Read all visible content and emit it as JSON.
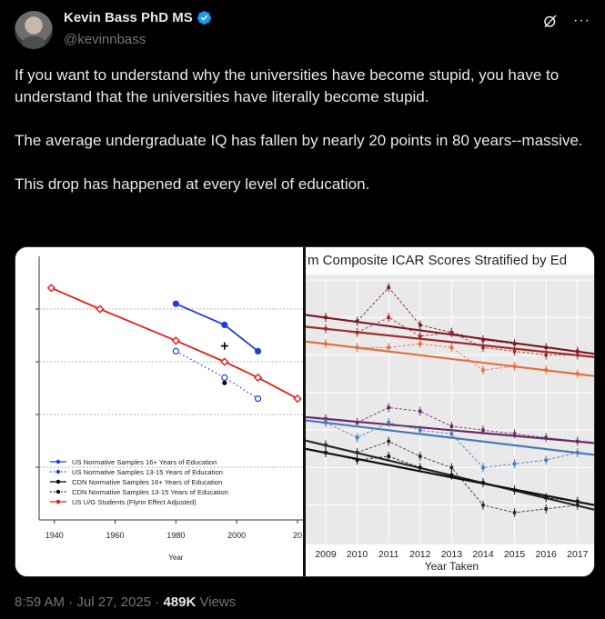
{
  "user": {
    "name": "Kevin Bass PhD MS",
    "handle": "@kevinnbass"
  },
  "tweet": {
    "paragraphs": [
      "If you want to understand why the universities have become stupid, you have to understand that the universities have literally become stupid.",
      "The average undergraduate IQ has fallen by nearly 20 points in 80 years--massive.",
      "This drop has happened at every level of education."
    ]
  },
  "footer": {
    "time": "8:59 AM",
    "separator": "·",
    "date": "Jul 27, 2025",
    "views_count": "489K",
    "views_label": "Views"
  },
  "icons": {
    "verified": "verified-badge-icon",
    "grok": "grok-icon",
    "more": "more-options-icon"
  },
  "colors": {
    "accent": "#1d9bf0",
    "background": "#000000",
    "secondary": "#71767b"
  },
  "chart_data": [
    {
      "type": "line",
      "title": "",
      "xlabel": "Year",
      "ylabel": "",
      "xlim": [
        1935,
        2020
      ],
      "x_ticks": [
        "1940",
        "1960",
        "1980",
        "2000",
        "20"
      ],
      "grid": "horizontal dotted",
      "legend_position": "bottom-left",
      "series": [
        {
          "name": "US Normative Samples 16+ Years of Education",
          "color": "#1f3fd6",
          "style": "solid",
          "x": [
            1980,
            1996,
            2007
          ],
          "y": [
            101,
            97,
            92
          ]
        },
        {
          "name": "US Normative Samples 13-15 Years of Education",
          "color": "#1f3fd6",
          "style": "dotted",
          "x": [
            1980,
            1996,
            2007
          ],
          "y": [
            92,
            87,
            83
          ]
        },
        {
          "name": "CDN Normative Samples 16+ Years of Education",
          "color": "#000000",
          "style": "solid",
          "x": [
            1996
          ],
          "y": [
            93
          ]
        },
        {
          "name": "CDN Normative Samples 13-15 Years of Education",
          "color": "#000000",
          "style": "dotted",
          "x": [
            1996
          ],
          "y": [
            86
          ]
        },
        {
          "name": "US U/G Students (Flynn Effect Adjusted)",
          "color": "#e0201b",
          "style": "solid",
          "x": [
            1939,
            1955,
            1980,
            1996,
            2007,
            2020
          ],
          "y": [
            104,
            100,
            94,
            90,
            87,
            83
          ]
        }
      ]
    },
    {
      "type": "line",
      "title": "m Composite ICAR Scores Stratified by Ed",
      "xlabel": "Year Taken",
      "ylabel": "",
      "x": [
        "2009",
        "2010",
        "2011",
        "2012",
        "2013",
        "2014",
        "2015",
        "2016",
        "2017"
      ],
      "grid": "on",
      "series": [
        {
          "color": "#7a1a25",
          "values": [
            0.7,
            0.69,
            0.78,
            0.68,
            0.66,
            0.64,
            0.63,
            0.62,
            0.61
          ]
        },
        {
          "color": "#a02a2a",
          "values": [
            0.67,
            0.66,
            0.7,
            0.65,
            0.66,
            0.62,
            0.61,
            0.6,
            0.6
          ]
        },
        {
          "color": "#e07040",
          "values": [
            0.63,
            0.62,
            0.62,
            0.63,
            0.62,
            0.56,
            0.57,
            0.56,
            0.55
          ]
        },
        {
          "color": "#6a2a6a",
          "values": [
            0.43,
            0.42,
            0.46,
            0.45,
            0.41,
            0.4,
            0.39,
            0.38,
            0.37
          ]
        },
        {
          "color": "#4a7ab8",
          "values": [
            0.42,
            0.38,
            0.42,
            0.4,
            0.39,
            0.3,
            0.31,
            0.32,
            0.34
          ]
        },
        {
          "color": "#2a2a2a",
          "values": [
            0.36,
            0.34,
            0.37,
            0.33,
            0.3,
            0.2,
            0.18,
            0.19,
            0.2
          ]
        },
        {
          "color": "#111111",
          "values": [
            0.34,
            0.32,
            0.33,
            0.3,
            0.28,
            0.26,
            0.24,
            0.22,
            0.21
          ]
        }
      ]
    }
  ]
}
